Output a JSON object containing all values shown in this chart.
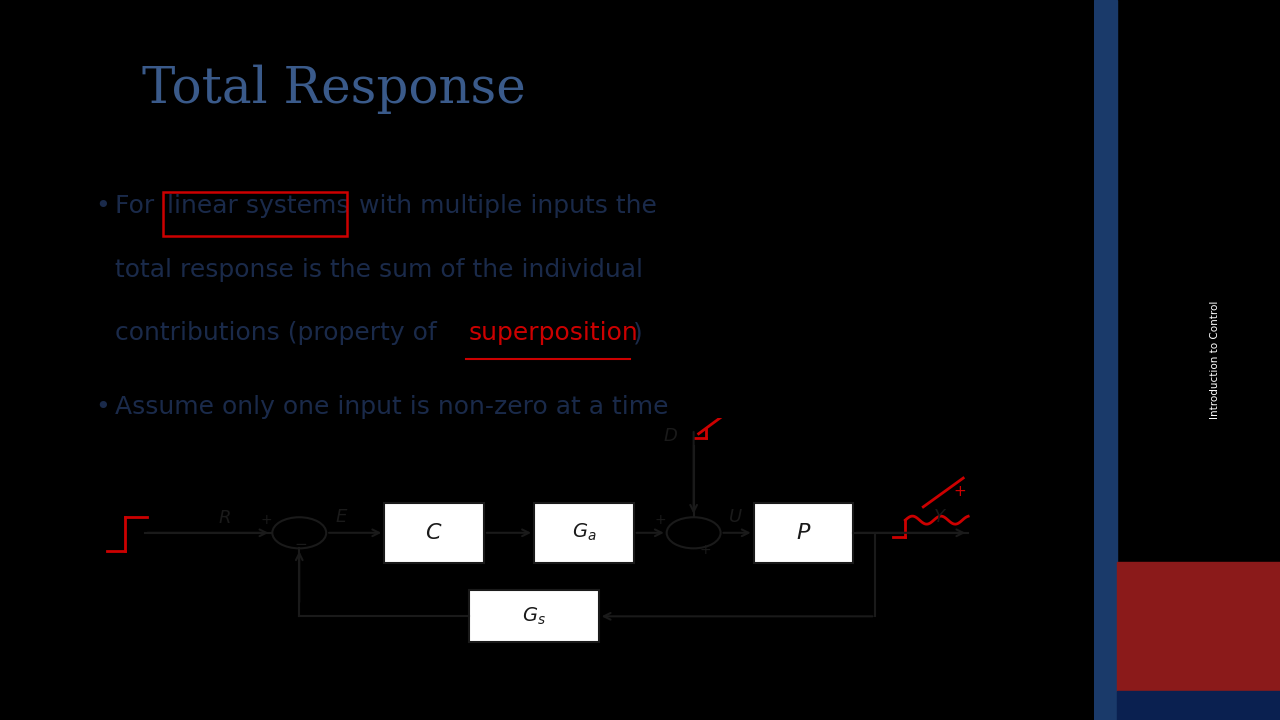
{
  "title": "Total Response",
  "title_color": "#3a5a8a",
  "bg_color": "#d8e4f0",
  "slide_bg": "#000000",
  "right_bar_color": "#2060a0",
  "red_square_color": "#8b1a1a",
  "bullet1_part1": "For ",
  "bullet1_highlight": "linear systems",
  "bullet1_part2": " with multiple inputs the",
  "bullet1_line2": "total response is the sum of the individual",
  "bullet1_line3a": "contributions (property of ",
  "bullet1_super": "superposition",
  "bullet1_line3b": ")",
  "bullet2": "Assume only one input is non-zero at a time",
  "text_color": "#1a2a4a",
  "red_color": "#cc0000",
  "diagram_line_color": "#1a1a1a",
  "sidebar_text": "Introduction to Control",
  "sidebar_text_color": "#ffffff"
}
